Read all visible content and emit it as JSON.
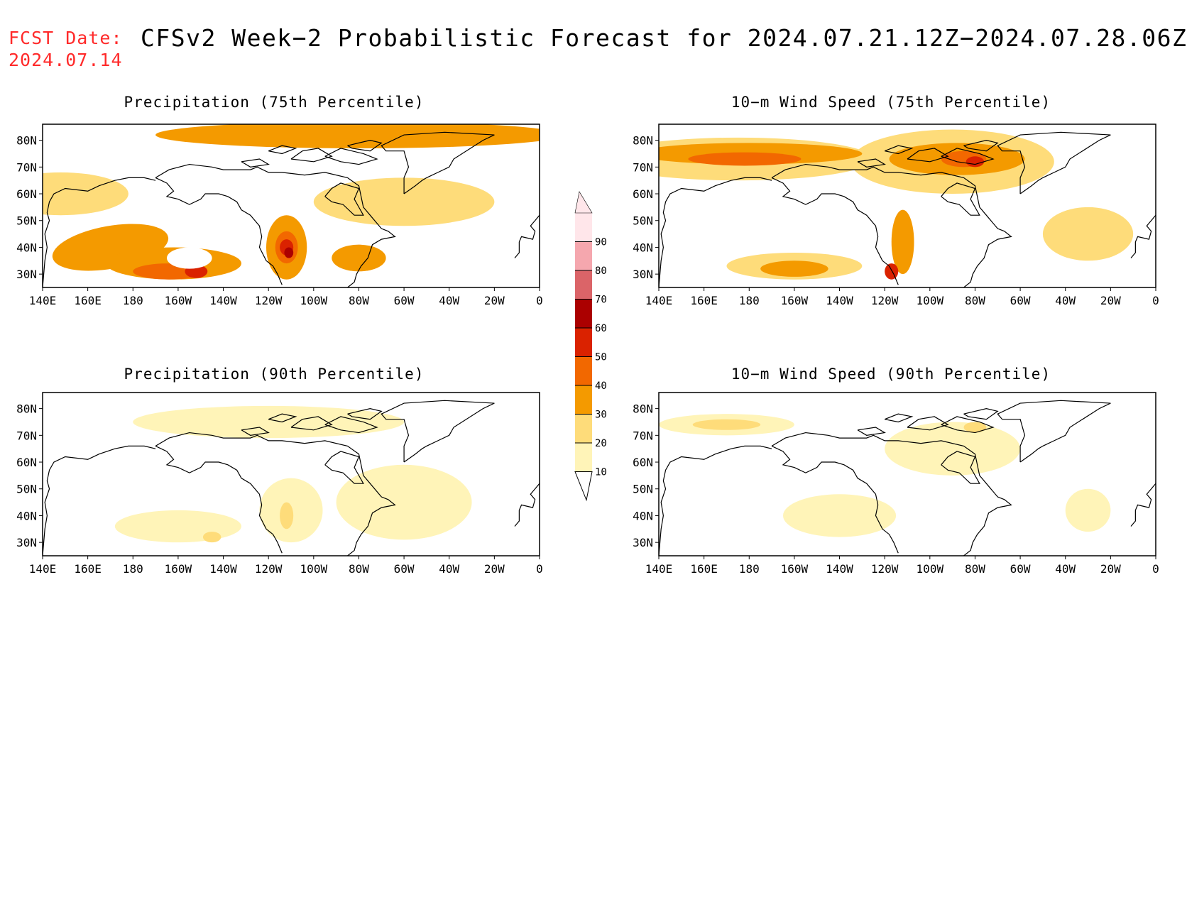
{
  "header": {
    "fcst_label": "FCST Date:",
    "fcst_date": "2024.07.14",
    "title": "CFSv2 Week−2 Probabilistic Forecast for 2024.07.21.12Z−2024.07.28.06Z"
  },
  "axes": {
    "lat_labels": [
      "80N",
      "70N",
      "60N",
      "50N",
      "40N",
      "30N"
    ],
    "lon_labels": [
      "140E",
      "160E",
      "180",
      "160W",
      "140W",
      "120W",
      "100W",
      "80W",
      "60W",
      "40W",
      "20W",
      "0"
    ]
  },
  "legend": {
    "levels": [
      "10",
      "20",
      "30",
      "40",
      "50",
      "60",
      "70",
      "80",
      "90"
    ],
    "colors": [
      "#ffffff",
      "#fff4b8",
      "#fedc7a",
      "#f49a00",
      "#f26800",
      "#da2200",
      "#ab0000",
      "#db6468",
      "#f5a7ae",
      "#ffe6ea"
    ]
  },
  "panels": [
    {
      "title": "Precipitation (75th Percentile)",
      "variable": "precipitation",
      "percentile": "75th"
    },
    {
      "title": "10−m Wind Speed (75th Percentile)",
      "variable": "wind",
      "percentile": "75th"
    },
    {
      "title": "Precipitation (90th Percentile)",
      "variable": "precipitation",
      "percentile": "90th"
    },
    {
      "title": "10−m Wind Speed (90th Percentile)",
      "variable": "wind",
      "percentile": "90th"
    }
  ]
}
